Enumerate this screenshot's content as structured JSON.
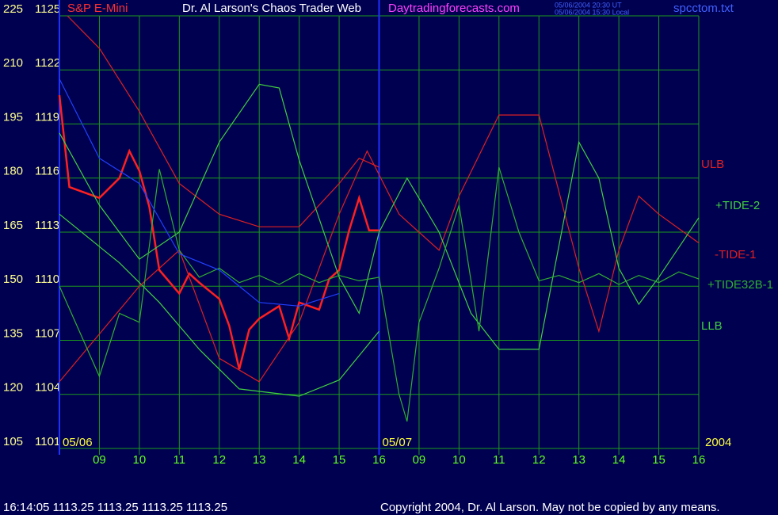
{
  "chart_data": {
    "type": "line",
    "title": "Dr. Al Larson's Chaos Trader Web",
    "site": "Daytradingforecasts.com",
    "stamp_ut": "05/06/2004 20:30 UT",
    "stamp_local": "05/06/2004 15:30 Local",
    "file": "spcctom.txt",
    "day_labels": [
      {
        "value": 0,
        "label": "05/06"
      },
      {
        "value": 8,
        "label": "05/07"
      }
    ],
    "year": "2004",
    "status": "16:14:05  1113.25 1113.25 1113.25 1113.25",
    "copyright": "Copyright 2004, Dr. Al Larson. May not be copied by any means.",
    "grid": true,
    "xlim": [
      0,
      16
    ],
    "xticks": [
      {
        "value": 1,
        "label": "09"
      },
      {
        "value": 2,
        "label": "10"
      },
      {
        "value": 3,
        "label": "11"
      },
      {
        "value": 4,
        "label": "12"
      },
      {
        "value": 5,
        "label": "13"
      },
      {
        "value": 6,
        "label": "14"
      },
      {
        "value": 7,
        "label": "15"
      },
      {
        "value": 8,
        "label": "16"
      },
      {
        "value": 9,
        "label": "09"
      },
      {
        "value": 10,
        "label": "10"
      },
      {
        "value": 11,
        "label": "11"
      },
      {
        "value": 12,
        "label": "12"
      },
      {
        "value": 13,
        "label": "13"
      },
      {
        "value": 14,
        "label": "14"
      },
      {
        "value": 15,
        "label": "15"
      },
      {
        "value": 16,
        "label": "16"
      }
    ],
    "ylim": [
      1101,
      1125
    ],
    "yticks": [
      1101,
      1104,
      1107,
      1110,
      1113,
      1116,
      1119,
      1122,
      1125
    ],
    "y2lim": [
      105,
      225
    ],
    "y2ticks": [
      105,
      120,
      135,
      150,
      165,
      180,
      195,
      210,
      225
    ],
    "series": [
      {
        "name": "S&P E-Mini",
        "color": "#ff2020",
        "x": [
          0,
          0.25,
          0.5,
          1,
          1.5,
          1.75,
          2,
          2.25,
          2.5,
          3,
          3.25,
          3.5,
          4,
          4.25,
          4.5,
          4.75,
          5,
          5.5,
          5.75,
          6,
          6.5,
          6.75,
          7,
          7.25,
          7.5,
          7.75,
          8
        ],
        "values": [
          1120.6,
          1115.5,
          1115.3,
          1114.9,
          1116.0,
          1117.5,
          1116.4,
          1114.4,
          1110.9,
          1109.6,
          1110.7,
          1110.2,
          1109.3,
          1107.8,
          1105.4,
          1107.6,
          1108.2,
          1108.9,
          1107.1,
          1109.1,
          1108.7,
          1110.4,
          1110.9,
          1113.1,
          1114.9,
          1113.1,
          1113.1
        ]
      },
      {
        "name": "ULB",
        "color": "#e02020",
        "x": [
          0.2,
          1,
          2,
          3,
          4,
          5,
          6,
          7,
          7.5,
          8
        ],
        "values": [
          1125,
          1123.2,
          1119.7,
          1115.7,
          1114.0,
          1113.3,
          1113.3,
          1115.7,
          1117.1,
          1116.6
        ]
      },
      {
        "name": "LLB",
        "color": "#40d040",
        "x": [
          0,
          1.5,
          2.5,
          3.5,
          4.5,
          6,
          7,
          8
        ],
        "values": [
          1114.0,
          1111.3,
          1109.1,
          1106.5,
          1104.3,
          1103.9,
          1104.8,
          1107.5
        ]
      },
      {
        "name": "-TIDE-1",
        "color": "#e02020",
        "x": [
          0,
          2,
          3,
          4,
          5,
          6,
          7,
          7.7,
          8.5,
          9.5,
          10,
          11,
          12,
          13,
          13.5,
          14,
          14.5,
          15,
          16
        ],
        "values": [
          1104.7,
          1110,
          1112,
          1106,
          1104.7,
          1108,
          1114,
          1117.5,
          1114,
          1112,
          1115,
          1119.5,
          1119.5,
          1111,
          1107.5,
          1112,
          1115,
          1114,
          1112.4
        ]
      },
      {
        "name": "+TIDE-2",
        "color": "#40d040",
        "x": [
          0,
          1,
          2,
          3,
          4,
          5,
          5.5,
          6,
          7,
          7.5,
          8,
          8.7,
          9.5,
          10.3,
          11,
          12,
          13,
          13.5,
          14,
          14.5,
          15,
          16
        ],
        "values": [
          1118.5,
          1114.5,
          1111.5,
          1113,
          1118,
          1121.2,
          1121,
          1117,
          1110.5,
          1108.5,
          1113,
          1116,
          1113,
          1108.5,
          1106.5,
          1106.5,
          1118,
          1116,
          1111,
          1109,
          1110.5,
          1113.8
        ]
      },
      {
        "name": "+TIDE32B-1",
        "color": "#30b030",
        "x": [
          0,
          0.5,
          1,
          1.5,
          2,
          2.5,
          3,
          3.5,
          4,
          4.5,
          5,
          5.5,
          6,
          6.5,
          7,
          7.5,
          8,
          8.5,
          8.7,
          9,
          9.5,
          10,
          10.5,
          11,
          11.5,
          12,
          12.5,
          13,
          13.5,
          14,
          14.5,
          15,
          15.5,
          16
        ],
        "values": [
          1110,
          1107.5,
          1105,
          1108.5,
          1108,
          1116.5,
          1112,
          1110.5,
          1111,
          1110.2,
          1110.6,
          1110.1,
          1110.7,
          1110.2,
          1110.6,
          1110.3,
          1110.5,
          1104,
          1102.5,
          1108,
          1111,
          1114.5,
          1107.5,
          1116.6,
          1113,
          1110.3,
          1110.6,
          1110.2,
          1110.7,
          1110.1,
          1110.6,
          1110.2,
          1110.8,
          1110.4
        ]
      },
      {
        "color": "#2040ff",
        "x": [
          0,
          1,
          2,
          3,
          4,
          5,
          6,
          7
        ],
        "values": [
          1121.5,
          1117.1,
          1115.7,
          1111.8,
          1110.9,
          1109.1,
          1108.9,
          1109.6
        ]
      }
    ]
  }
}
